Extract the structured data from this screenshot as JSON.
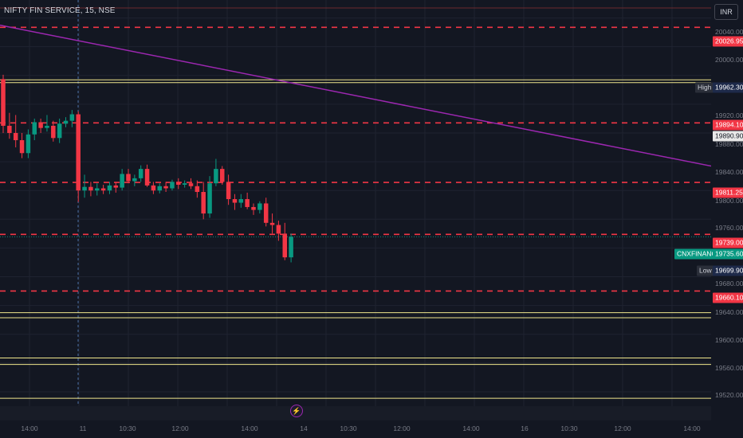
{
  "header": {
    "symbol_title": "NIFTY FIN SERVICE, 15, NSE",
    "currency": "INR"
  },
  "price_axis": {
    "ticks": [
      "20040.00",
      "20000.00",
      "19920.00",
      "19880.00",
      "19840.00",
      "19800.00",
      "19760.00",
      "19680.00",
      "19640.00",
      "19600.00",
      "19560.00",
      "19520.00"
    ]
  },
  "time_axis": {
    "ticks": [
      "14:00",
      "11",
      "10:30",
      "12:00",
      "14:00",
      "14",
      "10:30",
      "12:00",
      "14:00",
      "16",
      "10:30",
      "12:00",
      "14:00"
    ]
  },
  "price_labels": {
    "level_20026": "20026.95",
    "high_caption": "High",
    "high_value": "19962.30",
    "level_19894": "19894.10",
    "level_19890": "19890.90",
    "level_19811": "19811.25",
    "level_19739": "19739.00",
    "symbol_caption": "CNXFINANCE",
    "last_price": "19735.60",
    "low_caption": "Low",
    "low_value": "19699.90",
    "level_19660": "19660.10"
  },
  "colors": {
    "background": "#131722",
    "up_candle": "#089981",
    "down_candle": "#f23645",
    "support_resistance_dashed": "#f23645",
    "zone_lines": "#f0e68c",
    "trendline": "#9c27b0"
  },
  "icons": {
    "events": "lightning-bolt-icon"
  },
  "chart_data": {
    "type": "candlestick",
    "title": "NIFTY FIN SERVICE, 15, NSE",
    "currency": "INR",
    "interval": "15",
    "ylim": [
      19500,
      20065
    ],
    "dashed_levels": [
      20026.95,
      19894.1,
      19811.25,
      19739.0,
      19660.1
    ],
    "zone_lines": [
      19954,
      19950,
      19630,
      19623,
      19567,
      19558,
      19511
    ],
    "trendline": {
      "from": 20030,
      "to": 19834
    },
    "last_price": 19735.6,
    "high": 19962.3,
    "low": 19699.9,
    "candles": [
      {
        "o": 19955,
        "h": 19961,
        "l": 19880,
        "c": 19890
      },
      {
        "o": 19890,
        "h": 19908,
        "l": 19872,
        "c": 19880
      },
      {
        "o": 19880,
        "h": 19905,
        "l": 19860,
        "c": 19870
      },
      {
        "o": 19870,
        "h": 19880,
        "l": 19845,
        "c": 19852
      },
      {
        "o": 19852,
        "h": 19885,
        "l": 19845,
        "c": 19878
      },
      {
        "o": 19878,
        "h": 19900,
        "l": 19870,
        "c": 19895
      },
      {
        "o": 19895,
        "h": 19900,
        "l": 19880,
        "c": 19887
      },
      {
        "o": 19887,
        "h": 19905,
        "l": 19882,
        "c": 19890
      },
      {
        "o": 19890,
        "h": 19897,
        "l": 19868,
        "c": 19873
      },
      {
        "o": 19873,
        "h": 19900,
        "l": 19866,
        "c": 19893
      },
      {
        "o": 19893,
        "h": 19902,
        "l": 19888,
        "c": 19897
      },
      {
        "o": 19897,
        "h": 19912,
        "l": 19888,
        "c": 19906
      },
      {
        "o": 19906,
        "h": 19910,
        "l": 19784,
        "c": 19800
      },
      {
        "o": 19800,
        "h": 19822,
        "l": 19790,
        "c": 19805
      },
      {
        "o": 19805,
        "h": 19812,
        "l": 19792,
        "c": 19800
      },
      {
        "o": 19800,
        "h": 19810,
        "l": 19793,
        "c": 19803
      },
      {
        "o": 19803,
        "h": 19808,
        "l": 19795,
        "c": 19800
      },
      {
        "o": 19800,
        "h": 19812,
        "l": 19795,
        "c": 19807
      },
      {
        "o": 19807,
        "h": 19812,
        "l": 19797,
        "c": 19804
      },
      {
        "o": 19804,
        "h": 19830,
        "l": 19800,
        "c": 19823
      },
      {
        "o": 19823,
        "h": 19830,
        "l": 19810,
        "c": 19813
      },
      {
        "o": 19813,
        "h": 19822,
        "l": 19806,
        "c": 19817
      },
      {
        "o": 19817,
        "h": 19835,
        "l": 19812,
        "c": 19830
      },
      {
        "o": 19830,
        "h": 19836,
        "l": 19805,
        "c": 19807
      },
      {
        "o": 19807,
        "h": 19812,
        "l": 19795,
        "c": 19800
      },
      {
        "o": 19800,
        "h": 19810,
        "l": 19796,
        "c": 19806
      },
      {
        "o": 19806,
        "h": 19812,
        "l": 19798,
        "c": 19803
      },
      {
        "o": 19803,
        "h": 19815,
        "l": 19800,
        "c": 19812
      },
      {
        "o": 19812,
        "h": 19817,
        "l": 19802,
        "c": 19808
      },
      {
        "o": 19808,
        "h": 19814,
        "l": 19804,
        "c": 19810
      },
      {
        "o": 19810,
        "h": 19817,
        "l": 19802,
        "c": 19806
      },
      {
        "o": 19806,
        "h": 19814,
        "l": 19790,
        "c": 19798
      },
      {
        "o": 19798,
        "h": 19812,
        "l": 19760,
        "c": 19768
      },
      {
        "o": 19768,
        "h": 19820,
        "l": 19762,
        "c": 19810
      },
      {
        "o": 19810,
        "h": 19844,
        "l": 19806,
        "c": 19830
      },
      {
        "o": 19830,
        "h": 19834,
        "l": 19808,
        "c": 19812
      },
      {
        "o": 19812,
        "h": 19822,
        "l": 19780,
        "c": 19788
      },
      {
        "o": 19788,
        "h": 19795,
        "l": 19773,
        "c": 19783
      },
      {
        "o": 19783,
        "h": 19795,
        "l": 19776,
        "c": 19788
      },
      {
        "o": 19788,
        "h": 19797,
        "l": 19774,
        "c": 19777
      },
      {
        "o": 19777,
        "h": 19782,
        "l": 19766,
        "c": 19773
      },
      {
        "o": 19773,
        "h": 19785,
        "l": 19768,
        "c": 19782
      },
      {
        "o": 19782,
        "h": 19790,
        "l": 19750,
        "c": 19755
      },
      {
        "o": 19755,
        "h": 19768,
        "l": 19740,
        "c": 19752
      },
      {
        "o": 19752,
        "h": 19758,
        "l": 19730,
        "c": 19740
      },
      {
        "o": 19740,
        "h": 19755,
        "l": 19703,
        "c": 19707
      },
      {
        "o": 19707,
        "h": 19740,
        "l": 19700,
        "c": 19735.6
      }
    ]
  }
}
